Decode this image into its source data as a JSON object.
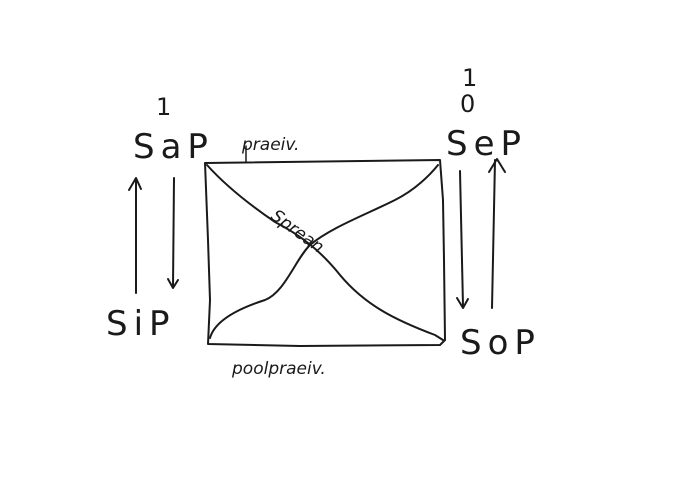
{
  "labels": {
    "top_left": "SaP",
    "bottom_left": "SiP",
    "top_right": "SeP",
    "bottom_right": "SoP",
    "top_left_superscript": "1",
    "top_right_superscript_1": "1",
    "top_right_superscript_2": "0",
    "top_edge": "praeiv.",
    "bottom_edge": "poolpraeiv.",
    "center": "Sprean"
  }
}
